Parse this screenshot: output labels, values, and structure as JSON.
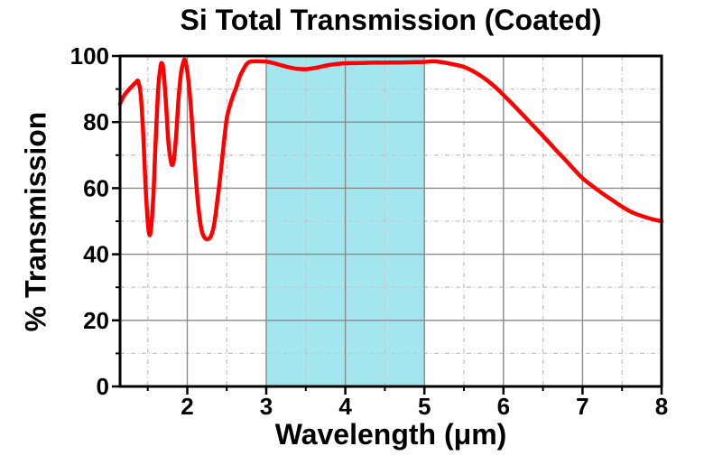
{
  "page": {
    "background": "#ffffff"
  },
  "chart_data": {
    "type": "line",
    "title": "Si Total Transmission (Coated)",
    "xlabel": "Wavelength (μm)",
    "ylabel": "% Transmission",
    "xlim": [
      1.15,
      8
    ],
    "ylim": [
      0,
      100
    ],
    "x_major_ticks": [
      2,
      3,
      4,
      5,
      6,
      7,
      8
    ],
    "x_minor_ticks": [
      1.5,
      2.5,
      3.5,
      4.5,
      5.5,
      6.5,
      7.5
    ],
    "y_major_ticks": [
      0,
      20,
      40,
      60,
      80,
      100
    ],
    "y_minor_ticks": [
      10,
      30,
      50,
      70,
      90
    ],
    "grid": {
      "major": true,
      "minor": true
    },
    "legend": "none",
    "highlight_band": {
      "x_from": 3,
      "x_to": 5,
      "color": "#A3E6EE"
    },
    "colors": {
      "curve": "#FF0000",
      "grid_major": "#8A8A8A",
      "grid_minor": "#C6C6C6",
      "frame": "#000000",
      "band": "#A3E6EE"
    },
    "series": [
      {
        "name": "Si total transmission (coated)",
        "color": "#FF0000",
        "points": [
          [
            1.15,
            85.5
          ],
          [
            1.2,
            88.0
          ],
          [
            1.25,
            89.5
          ],
          [
            1.3,
            90.8
          ],
          [
            1.35,
            92.0
          ],
          [
            1.38,
            92.3
          ],
          [
            1.41,
            88.5
          ],
          [
            1.44,
            78.0
          ],
          [
            1.47,
            62.0
          ],
          [
            1.5,
            50.0
          ],
          [
            1.52,
            46.0
          ],
          [
            1.54,
            47.5
          ],
          [
            1.57,
            57.0
          ],
          [
            1.6,
            74.0
          ],
          [
            1.63,
            89.0
          ],
          [
            1.66,
            96.5
          ],
          [
            1.68,
            97.8
          ],
          [
            1.7,
            95.5
          ],
          [
            1.73,
            86.0
          ],
          [
            1.76,
            74.5
          ],
          [
            1.79,
            68.5
          ],
          [
            1.81,
            67.0
          ],
          [
            1.83,
            68.5
          ],
          [
            1.86,
            76.0
          ],
          [
            1.89,
            87.0
          ],
          [
            1.92,
            94.5
          ],
          [
            1.95,
            98.0
          ],
          [
            1.97,
            98.8
          ],
          [
            2.0,
            95.5
          ],
          [
            2.03,
            89.0
          ],
          [
            2.06,
            80.0
          ],
          [
            2.1,
            66.0
          ],
          [
            2.14,
            54.5
          ],
          [
            2.18,
            47.5
          ],
          [
            2.22,
            45.0
          ],
          [
            2.26,
            44.6
          ],
          [
            2.3,
            45.5
          ],
          [
            2.34,
            49.0
          ],
          [
            2.38,
            56.0
          ],
          [
            2.42,
            64.0
          ],
          [
            2.46,
            73.0
          ],
          [
            2.5,
            81.0
          ],
          [
            2.54,
            85.0
          ],
          [
            2.58,
            88.0
          ],
          [
            2.62,
            90.5
          ],
          [
            2.66,
            93.5
          ],
          [
            2.7,
            95.5
          ],
          [
            2.75,
            97.5
          ],
          [
            2.8,
            98.3
          ],
          [
            2.9,
            98.4
          ],
          [
            3.0,
            98.3
          ],
          [
            3.1,
            97.8
          ],
          [
            3.2,
            97.1
          ],
          [
            3.3,
            96.5
          ],
          [
            3.4,
            96.1
          ],
          [
            3.5,
            96.0
          ],
          [
            3.6,
            96.3
          ],
          [
            3.7,
            96.8
          ],
          [
            3.8,
            97.3
          ],
          [
            3.9,
            97.6
          ],
          [
            4.0,
            97.8
          ],
          [
            4.2,
            97.9
          ],
          [
            4.4,
            98.0
          ],
          [
            4.6,
            98.0
          ],
          [
            4.8,
            98.1
          ],
          [
            5.0,
            98.2
          ],
          [
            5.1,
            98.4
          ],
          [
            5.2,
            98.2
          ],
          [
            5.3,
            97.8
          ],
          [
            5.4,
            97.3
          ],
          [
            5.5,
            96.7
          ],
          [
            5.6,
            95.6
          ],
          [
            5.7,
            94.2
          ],
          [
            5.8,
            92.5
          ],
          [
            5.9,
            90.5
          ],
          [
            6.0,
            88.2
          ],
          [
            6.1,
            85.8
          ],
          [
            6.2,
            83.3
          ],
          [
            6.3,
            80.8
          ],
          [
            6.4,
            78.3
          ],
          [
            6.5,
            75.8
          ],
          [
            6.6,
            73.2
          ],
          [
            6.7,
            70.6
          ],
          [
            6.8,
            68.1
          ],
          [
            6.9,
            65.5
          ],
          [
            7.0,
            63.0
          ],
          [
            7.1,
            61.1
          ],
          [
            7.2,
            59.3
          ],
          [
            7.3,
            57.6
          ],
          [
            7.4,
            56.0
          ],
          [
            7.5,
            54.4
          ],
          [
            7.6,
            53.0
          ],
          [
            7.7,
            52.0
          ],
          [
            7.8,
            51.2
          ],
          [
            7.9,
            50.5
          ],
          [
            8.0,
            50.0
          ]
        ]
      }
    ]
  }
}
